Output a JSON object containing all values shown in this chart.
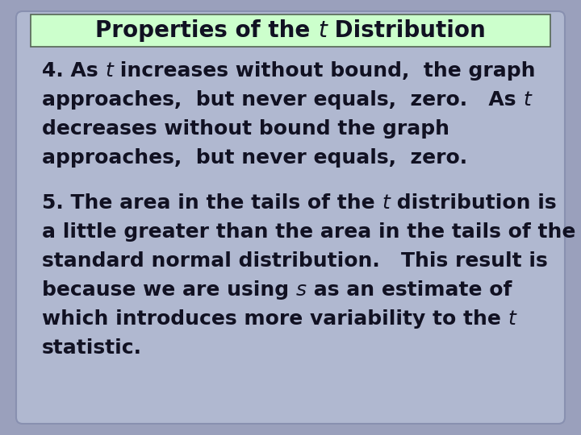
{
  "bg_outer": "#9aa0bc",
  "bg_inner": "#b0b8d0",
  "title_box_color": "#ccffcc",
  "title_box_edge": "#444444",
  "text_color": "#111122",
  "font_size": 18,
  "title_font_size": 20,
  "title_parts": [
    [
      "Properties of the ",
      false
    ],
    [
      "t",
      true
    ],
    [
      " Distribution",
      false
    ]
  ],
  "para1": [
    [
      [
        "4. As ",
        false
      ],
      [
        "t",
        true
      ],
      [
        " increases without bound,  the graph",
        false
      ]
    ],
    [
      [
        "approaches,  but never equals,  zero.   As ",
        false
      ],
      [
        "t",
        true
      ]
    ],
    [
      [
        "decreases without bound the graph",
        false
      ]
    ],
    [
      [
        "approaches,  but never equals,  zero.",
        false
      ]
    ]
  ],
  "para2": [
    [
      [
        "5. The area in the tails of the ",
        false
      ],
      [
        "t",
        true
      ],
      [
        " distribution is",
        false
      ]
    ],
    [
      [
        "a little greater than the area in the tails of the",
        false
      ]
    ],
    [
      [
        "standard normal distribution.   This result is",
        false
      ]
    ],
    [
      [
        "because we are using ",
        false
      ],
      [
        "s",
        true
      ],
      [
        " as an estimate of",
        false
      ]
    ],
    [
      [
        "which introduces more variability to the ",
        false
      ],
      [
        "t",
        true
      ]
    ],
    [
      [
        "statistic.",
        false
      ]
    ]
  ]
}
